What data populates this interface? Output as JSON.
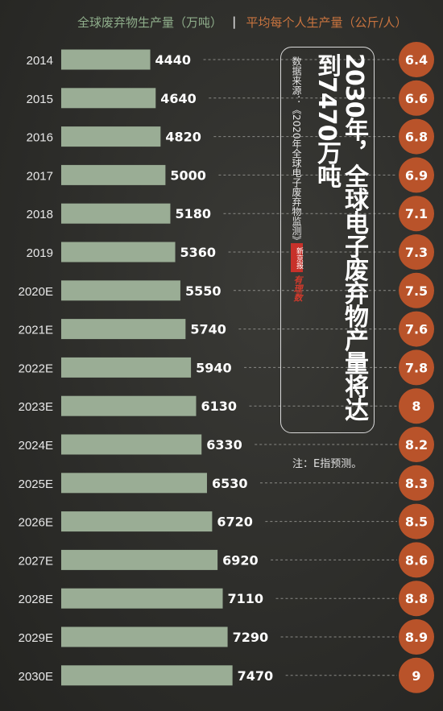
{
  "legend": {
    "series1": "全球废弃物生产量（万吨）",
    "separator": "|",
    "series2": "平均每个人生产量（公斤/人）"
  },
  "title": "2030年，全球电子废弃物产量将达到7470万吨",
  "source": "数据来源：《2020年全球电子废弃物监测》",
  "logo": {
    "badge": "新京报",
    "sub": "有理数"
  },
  "note": "注：E指预测。",
  "colors": {
    "bar": "#9aad95",
    "circle": "#b9532a",
    "label": "#ffffff",
    "year": "#e8e8e8",
    "dash": "#8a8a86",
    "legend_green": "#8fae8b",
    "legend_orange": "#c9743f"
  },
  "chart_data": {
    "type": "bar",
    "orientation": "horizontal",
    "categories": [
      "2014",
      "2015",
      "2016",
      "2017",
      "2018",
      "2019",
      "2020E",
      "2021E",
      "2022E",
      "2023E",
      "2024E",
      "2025E",
      "2026E",
      "2027E",
      "2028E",
      "2029E",
      "2030E"
    ],
    "series": [
      {
        "name": "全球废弃物生产量（万吨）",
        "values": [
          4440,
          4640,
          4820,
          5000,
          5180,
          5360,
          5550,
          5740,
          5940,
          6130,
          6330,
          6530,
          6720,
          6920,
          7110,
          7290,
          7470
        ]
      },
      {
        "name": "平均每个人生产量（公斤/人）",
        "values": [
          "6.4",
          "6.6",
          "6.8",
          "6.9",
          "7.1",
          "7.3",
          "7.5",
          "7.6",
          "7.8",
          "8",
          "8.2",
          "8.3",
          "8.5",
          "8.6",
          "8.8",
          "8.9",
          "9"
        ]
      }
    ],
    "grid": false,
    "legend_position": "top"
  }
}
